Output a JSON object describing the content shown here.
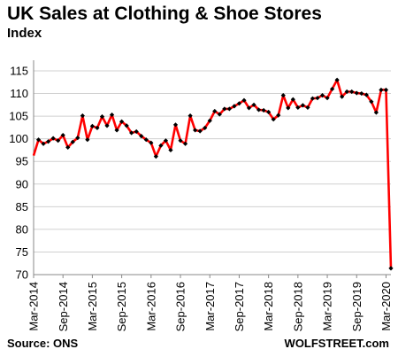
{
  "chart_data": {
    "type": "line",
    "title": "UK Sales at Clothing & Shoe Stores",
    "ylabel": "Index",
    "xlabel": "",
    "source": "Source: ONS",
    "brand": "WOLFSTREET.com",
    "ylim": [
      70,
      115
    ],
    "yticks": [
      70,
      75,
      80,
      85,
      90,
      95,
      100,
      105,
      110,
      115
    ],
    "grid": "horizontal",
    "line_color": "#ff0000",
    "marker_color": "#000000",
    "x_tick_labels": [
      {
        "index": 0,
        "label": "Mar-2014"
      },
      {
        "index": 6,
        "label": "Sep-2014"
      },
      {
        "index": 12,
        "label": "Mar-2015"
      },
      {
        "index": 18,
        "label": "Sep-2015"
      },
      {
        "index": 24,
        "label": "Mar-2016"
      },
      {
        "index": 30,
        "label": "Sep-2016"
      },
      {
        "index": 36,
        "label": "Mar-2017"
      },
      {
        "index": 42,
        "label": "Sep-2017"
      },
      {
        "index": 48,
        "label": "Mar-2018"
      },
      {
        "index": 54,
        "label": "Sep-2018"
      },
      {
        "index": 60,
        "label": "Mar-2019"
      },
      {
        "index": 66,
        "label": "Sep-2019"
      },
      {
        "index": 72,
        "label": "Mar-2020"
      }
    ],
    "series": [
      {
        "values": [
          96.3,
          99.8,
          98.9,
          99.4,
          100.1,
          99.6,
          100.8,
          98.1,
          99.3,
          100.2,
          105.1,
          99.8,
          102.8,
          102.4,
          104.9,
          102.9,
          105.3,
          101.9,
          103.8,
          102.9,
          101.3,
          101.6,
          100.6,
          99.8,
          99.1,
          96.1,
          98.5,
          99.6,
          97.5,
          103.1,
          99.6,
          98.9,
          105.1,
          101.9,
          101.7,
          102.4,
          104.0,
          106.1,
          105.4,
          106.6,
          106.6,
          107.2,
          107.8,
          108.5,
          106.8,
          107.5,
          106.4,
          106.3,
          105.9,
          104.3,
          105.2,
          109.6,
          106.8,
          108.7,
          106.9,
          107.4,
          106.9,
          108.9,
          109.0,
          109.6,
          109.0,
          111.0,
          113.0,
          109.3,
          110.4,
          110.4,
          110.1,
          110.0,
          109.7,
          108.2,
          105.8,
          110.8,
          110.8,
          71.4
        ]
      }
    ]
  }
}
